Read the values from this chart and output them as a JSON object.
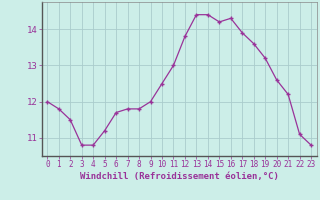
{
  "hours": [
    0,
    1,
    2,
    3,
    4,
    5,
    6,
    7,
    8,
    9,
    10,
    11,
    12,
    13,
    14,
    15,
    16,
    17,
    18,
    19,
    20,
    21,
    22,
    23
  ],
  "values": [
    12.0,
    11.8,
    11.5,
    10.8,
    10.8,
    11.2,
    11.7,
    11.8,
    11.8,
    12.0,
    12.5,
    13.0,
    13.8,
    14.4,
    14.4,
    14.2,
    14.3,
    13.9,
    13.6,
    13.2,
    12.6,
    12.2,
    11.1,
    10.8
  ],
  "line_color": "#993399",
  "marker": "+",
  "marker_size": 3,
  "bg_color": "#cceee8",
  "grid_color": "#aacccc",
  "xlabel": "Windchill (Refroidissement éolien,°C)",
  "ylim": [
    10.5,
    14.75
  ],
  "xlim": [
    -0.5,
    23.5
  ],
  "yticks": [
    11,
    12,
    13,
    14
  ],
  "xticks": [
    0,
    1,
    2,
    3,
    4,
    5,
    6,
    7,
    8,
    9,
    10,
    11,
    12,
    13,
    14,
    15,
    16,
    17,
    18,
    19,
    20,
    21,
    22,
    23
  ],
  "tick_labelsize": 5.5,
  "xlabel_fontsize": 6.5,
  "ytick_labelsize": 6.5
}
